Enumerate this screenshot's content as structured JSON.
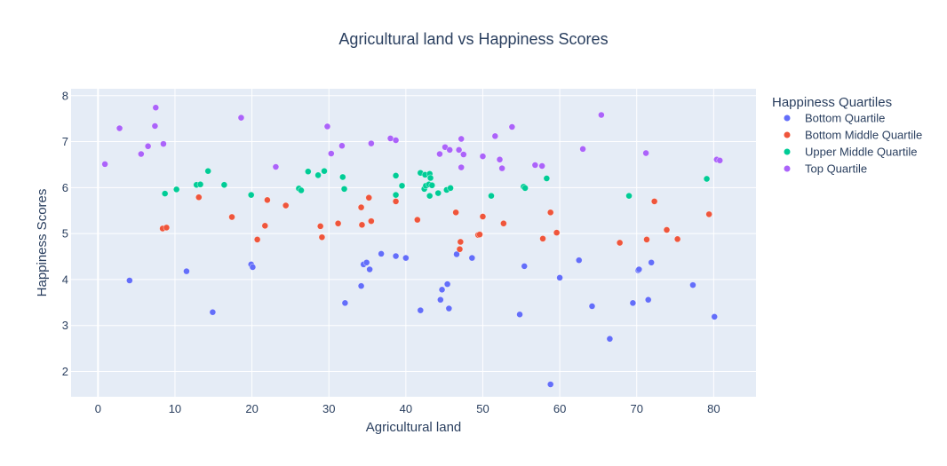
{
  "chart_data": {
    "type": "scatter",
    "title": "Agricultural land vs Happiness Scores",
    "xlabel": "Agricultural land",
    "ylabel": "Happiness Scores",
    "xlim": [
      -3.5,
      85.5
    ],
    "ylim": [
      1.45,
      8.15
    ],
    "xticks": [
      0,
      10,
      20,
      30,
      40,
      50,
      60,
      70,
      80
    ],
    "yticks": [
      2,
      3,
      4,
      5,
      6,
      7,
      8
    ],
    "grid": true,
    "legend": {
      "title": "Happiness Quartiles",
      "placement": "right"
    },
    "series": [
      {
        "name": "Bottom Quartile",
        "color": "#636efa",
        "points": [
          [
            4.1,
            3.98
          ],
          [
            11.5,
            4.18
          ],
          [
            14.9,
            3.29
          ],
          [
            19.9,
            4.33
          ],
          [
            20.1,
            4.27
          ],
          [
            32.1,
            3.49
          ],
          [
            34.2,
            3.86
          ],
          [
            34.5,
            4.33
          ],
          [
            34.9,
            4.37
          ],
          [
            35.3,
            4.22
          ],
          [
            36.8,
            4.56
          ],
          [
            38.7,
            4.51
          ],
          [
            40.0,
            4.47
          ],
          [
            41.9,
            3.33
          ],
          [
            44.5,
            3.56
          ],
          [
            44.7,
            3.78
          ],
          [
            45.4,
            3.9
          ],
          [
            45.6,
            3.37
          ],
          [
            46.6,
            4.55
          ],
          [
            48.6,
            4.47
          ],
          [
            54.8,
            3.24
          ],
          [
            55.4,
            4.29
          ],
          [
            58.8,
            1.72
          ],
          [
            60.0,
            4.04
          ],
          [
            62.5,
            4.42
          ],
          [
            64.2,
            3.42
          ],
          [
            66.5,
            2.71
          ],
          [
            69.5,
            3.49
          ],
          [
            70.2,
            4.2
          ],
          [
            70.3,
            4.22
          ],
          [
            71.5,
            3.56
          ],
          [
            71.9,
            4.37
          ],
          [
            77.3,
            3.88
          ],
          [
            80.1,
            3.19
          ]
        ]
      },
      {
        "name": "Bottom Middle Quartile",
        "color": "#ef553b",
        "points": [
          [
            8.4,
            5.11
          ],
          [
            8.9,
            5.13
          ],
          [
            13.1,
            5.79
          ],
          [
            17.4,
            5.36
          ],
          [
            20.7,
            4.87
          ],
          [
            21.7,
            5.17
          ],
          [
            22.0,
            5.73
          ],
          [
            24.4,
            5.61
          ],
          [
            28.9,
            5.16
          ],
          [
            29.1,
            4.92
          ],
          [
            31.2,
            5.22
          ],
          [
            34.2,
            5.57
          ],
          [
            34.3,
            5.19
          ],
          [
            35.2,
            5.78
          ],
          [
            35.5,
            5.27
          ],
          [
            38.7,
            5.7
          ],
          [
            41.5,
            5.3
          ],
          [
            46.5,
            5.46
          ],
          [
            47.0,
            4.66
          ],
          [
            47.1,
            4.82
          ],
          [
            49.4,
            4.97
          ],
          [
            49.6,
            4.98
          ],
          [
            50.0,
            5.37
          ],
          [
            52.7,
            5.22
          ],
          [
            57.8,
            4.89
          ],
          [
            58.8,
            5.46
          ],
          [
            59.6,
            5.02
          ],
          [
            67.8,
            4.8
          ],
          [
            71.3,
            4.87
          ],
          [
            72.3,
            5.7
          ],
          [
            73.9,
            5.08
          ],
          [
            75.3,
            4.88
          ],
          [
            79.4,
            5.42
          ]
        ]
      },
      {
        "name": "Upper Middle Quartile",
        "color": "#00cc96",
        "points": [
          [
            8.7,
            5.87
          ],
          [
            10.2,
            5.96
          ],
          [
            12.8,
            6.06
          ],
          [
            13.3,
            6.07
          ],
          [
            14.3,
            6.36
          ],
          [
            16.4,
            6.06
          ],
          [
            19.9,
            5.84
          ],
          [
            26.1,
            5.98
          ],
          [
            26.4,
            5.94
          ],
          [
            27.3,
            6.35
          ],
          [
            28.6,
            6.27
          ],
          [
            29.4,
            6.36
          ],
          [
            31.8,
            6.23
          ],
          [
            32.0,
            5.97
          ],
          [
            38.7,
            6.26
          ],
          [
            38.7,
            5.84
          ],
          [
            39.5,
            6.04
          ],
          [
            41.9,
            6.32
          ],
          [
            42.4,
            5.97
          ],
          [
            42.5,
            6.28
          ],
          [
            42.6,
            6.04
          ],
          [
            43.0,
            6.07
          ],
          [
            43.1,
            6.3
          ],
          [
            43.2,
            6.21
          ],
          [
            43.1,
            5.82
          ],
          [
            43.4,
            6.05
          ],
          [
            44.2,
            5.88
          ],
          [
            45.3,
            5.95
          ],
          [
            45.8,
            5.99
          ],
          [
            51.1,
            5.82
          ],
          [
            55.3,
            6.02
          ],
          [
            55.5,
            5.99
          ],
          [
            58.3,
            6.2
          ],
          [
            69.0,
            5.82
          ],
          [
            79.1,
            6.19
          ]
        ]
      },
      {
        "name": "Top Quartile",
        "color": "#ab63fa",
        "points": [
          [
            0.9,
            6.51
          ],
          [
            2.8,
            7.29
          ],
          [
            5.6,
            6.73
          ],
          [
            6.5,
            6.9
          ],
          [
            7.4,
            7.34
          ],
          [
            7.5,
            7.74
          ],
          [
            8.5,
            6.95
          ],
          [
            18.6,
            7.52
          ],
          [
            23.1,
            6.45
          ],
          [
            29.8,
            7.33
          ],
          [
            30.3,
            6.74
          ],
          [
            31.7,
            6.91
          ],
          [
            35.5,
            6.96
          ],
          [
            38.0,
            7.07
          ],
          [
            38.7,
            7.03
          ],
          [
            44.4,
            6.73
          ],
          [
            45.1,
            6.88
          ],
          [
            45.7,
            6.82
          ],
          [
            46.9,
            6.82
          ],
          [
            47.2,
            7.06
          ],
          [
            47.2,
            6.44
          ],
          [
            47.5,
            6.72
          ],
          [
            50.0,
            6.68
          ],
          [
            51.6,
            7.12
          ],
          [
            52.2,
            6.61
          ],
          [
            52.5,
            6.42
          ],
          [
            53.8,
            7.32
          ],
          [
            56.8,
            6.49
          ],
          [
            57.7,
            6.47
          ],
          [
            63.0,
            6.84
          ],
          [
            65.4,
            7.58
          ],
          [
            71.2,
            6.75
          ],
          [
            80.4,
            6.61
          ],
          [
            80.8,
            6.59
          ]
        ]
      }
    ]
  }
}
